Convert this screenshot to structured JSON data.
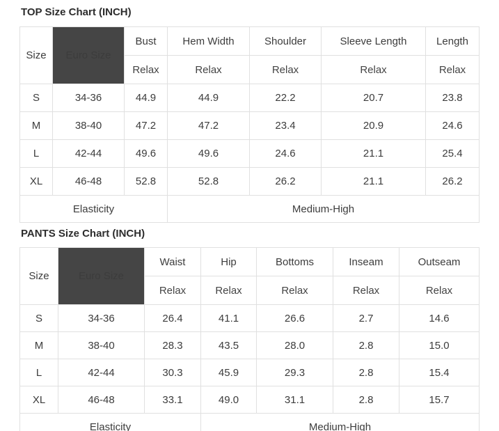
{
  "colors": {
    "euro_header_bg": "#454545",
    "euro_header_text": "#ffffff",
    "border": "#e0e0e0",
    "title_text": "#2d2d2d",
    "header_text": "#222222",
    "cell_text": "#3c3c3c"
  },
  "tables": [
    {
      "title": "TOP Size Chart (INCH)",
      "size_header": "Size",
      "euro_header": "Euro Size",
      "measures": [
        "Bust",
        "Hem Width",
        "Shoulder",
        "Sleeve Length",
        "Length"
      ],
      "fit": [
        "Relax",
        "Relax",
        "Relax",
        "Relax",
        "Relax"
      ],
      "rows": [
        {
          "size": "S",
          "euro": "34-36",
          "values": [
            "44.9",
            "44.9",
            "22.2",
            "20.7",
            "23.8"
          ]
        },
        {
          "size": "M",
          "euro": "38-40",
          "values": [
            "47.2",
            "47.2",
            "23.4",
            "20.9",
            "24.6"
          ]
        },
        {
          "size": "L",
          "euro": "42-44",
          "values": [
            "49.6",
            "49.6",
            "24.6",
            "21.1",
            "25.4"
          ]
        },
        {
          "size": "XL",
          "euro": "46-48",
          "values": [
            "52.8",
            "52.8",
            "26.2",
            "21.1",
            "26.2"
          ]
        }
      ],
      "elasticity_label": "Elasticity",
      "elasticity_value": "Medium-High"
    },
    {
      "title": "PANTS Size Chart (INCH)",
      "size_header": "Size",
      "euro_header": "Euro Size",
      "measures": [
        "Waist",
        "Hip",
        "Bottoms",
        "Inseam",
        "Outseam"
      ],
      "fit": [
        "Relax",
        "Relax",
        "Relax",
        "Relax",
        "Relax"
      ],
      "rows": [
        {
          "size": "S",
          "euro": "34-36",
          "values": [
            "26.4",
            "41.1",
            "26.6",
            "2.7",
            "14.6"
          ]
        },
        {
          "size": "M",
          "euro": "38-40",
          "values": [
            "28.3",
            "43.5",
            "28.0",
            "2.8",
            "15.0"
          ]
        },
        {
          "size": "L",
          "euro": "42-44",
          "values": [
            "30.3",
            "45.9",
            "29.3",
            "2.8",
            "15.4"
          ]
        },
        {
          "size": "XL",
          "euro": "46-48",
          "values": [
            "33.1",
            "49.0",
            "31.1",
            "2.8",
            "15.7"
          ]
        }
      ],
      "elasticity_label": "Elasticity",
      "elasticity_value": "Medium-High"
    }
  ],
  "chart_data": [
    {
      "type": "table",
      "title": "TOP Size Chart (INCH)",
      "columns": [
        "Size",
        "Euro Size",
        "Bust (Relax)",
        "Hem Width (Relax)",
        "Shoulder (Relax)",
        "Sleeve Length (Relax)",
        "Length (Relax)"
      ],
      "rows": [
        [
          "S",
          "34-36",
          44.9,
          44.9,
          22.2,
          20.7,
          23.8
        ],
        [
          "M",
          "38-40",
          47.2,
          47.2,
          23.4,
          20.9,
          24.6
        ],
        [
          "L",
          "42-44",
          49.6,
          49.6,
          24.6,
          21.1,
          25.4
        ],
        [
          "XL",
          "46-48",
          52.8,
          52.8,
          26.2,
          21.1,
          26.2
        ]
      ],
      "footer": {
        "Elasticity": "Medium-High"
      }
    },
    {
      "type": "table",
      "title": "PANTS Size Chart (INCH)",
      "columns": [
        "Size",
        "Euro Size",
        "Waist (Relax)",
        "Hip (Relax)",
        "Bottoms (Relax)",
        "Inseam (Relax)",
        "Outseam (Relax)"
      ],
      "rows": [
        [
          "S",
          "34-36",
          26.4,
          41.1,
          26.6,
          2.7,
          14.6
        ],
        [
          "M",
          "38-40",
          28.3,
          43.5,
          28.0,
          2.8,
          15.0
        ],
        [
          "L",
          "42-44",
          30.3,
          45.9,
          29.3,
          2.8,
          15.4
        ],
        [
          "XL",
          "46-48",
          33.1,
          49.0,
          31.1,
          2.8,
          15.7
        ]
      ],
      "footer": {
        "Elasticity": "Medium-High"
      }
    }
  ]
}
